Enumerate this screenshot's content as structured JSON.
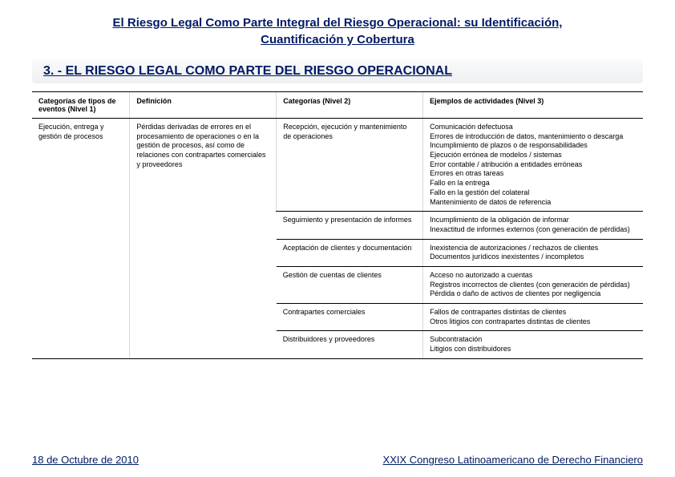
{
  "title_line1": "El Riesgo Legal Como Parte Integral del Riesgo Operacional: su Identificación,",
  "title_line2": "Cuantificación y Cobertura",
  "section_heading": "3. -  EL RIESGO LEGAL COMO PARTE DEL RIESGO OPERACIONAL",
  "headers": {
    "h1": "Categorías de tipos de eventos (Nivel 1)",
    "h2": "Definición",
    "h3": "Categorías (Nivel 2)",
    "h4": "Ejemplos de actividades (Nivel 3)"
  },
  "col1": "Ejecución, entrega y gestión de procesos",
  "col2": "Pérdidas derivadas de errores en el procesamiento de operaciones o en la gestión de procesos, así como de relaciones con contrapartes comerciales y proveedores",
  "rows": [
    {
      "cat2": "Recepción, ejecución y mantenimiento de operaciones",
      "ex": "Comunicación defectuosa\nErrores de introducción de datos, mantenimiento o descarga\nIncumplimiento de plazos o de responsabilidades\nEjecución errónea de modelos / sistemas\nError contable / atribución a entidades erróneas\nErrores en otras tareas\nFallo en la entrega\nFallo en la gestión del colateral\nMantenimiento de datos de referencia"
    },
    {
      "cat2": "Seguimiento y presentación de informes",
      "ex": "Incumplimiento de la obligación de informar\nInexactitud de informes externos (con generación de pérdidas)"
    },
    {
      "cat2": "Aceptación de clientes y documentación",
      "ex": "Inexistencia de autorizaciones / rechazos de clientes\nDocumentos jurídicos inexistentes / incompletos"
    },
    {
      "cat2": "Gestión de cuentas de clientes",
      "ex": "Acceso no autorizado a cuentas\nRegistros incorrectos de clientes (con generación de pérdidas)\nPérdida o daño de activos de clientes por negligencia"
    },
    {
      "cat2": "Contrapartes comerciales",
      "ex": "Fallos de contrapartes distintas de clientes\nOtros litigios con contrapartes distintas de clientes"
    },
    {
      "cat2": "Distribuidores y proveedores",
      "ex": "Subcontratación\nLitigios con distribuidores"
    }
  ],
  "footer_left": "18 de Octubre de 2010",
  "footer_right": "XXIX Congreso Latinoamericano de Derecho Financiero"
}
